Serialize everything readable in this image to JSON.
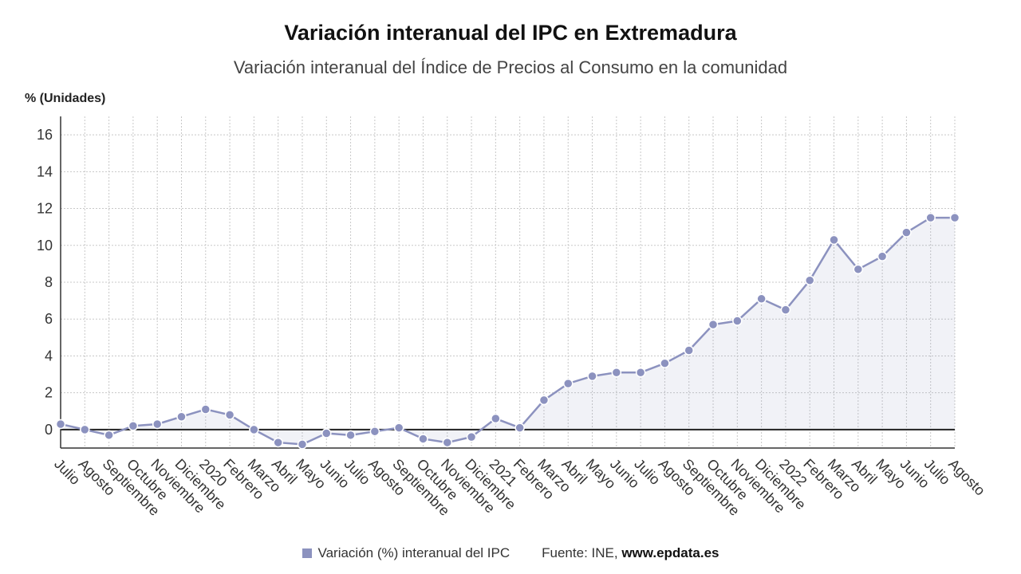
{
  "chart_data": {
    "type": "line",
    "title": "Variación interanual del IPC en Extremadura",
    "subtitle": "Variación interanual del Índice de Precios al Consumo en la comunidad",
    "ylabel": "% (Unidades)",
    "ylim": [
      -1,
      17
    ],
    "yticks": [
      0,
      2,
      4,
      6,
      8,
      10,
      12,
      14,
      16
    ],
    "grid": true,
    "categories": [
      "Julio",
      "Agosto",
      "Septiembre",
      "Octubre",
      "Noviembre",
      "Diciembre",
      "2020",
      "Febrero",
      "Marzo",
      "Abril",
      "Mayo",
      "Junio",
      "Julio",
      "Agosto",
      "Septiembre",
      "Octubre",
      "Noviembre",
      "Diciembre",
      "2021",
      "Febrero",
      "Marzo",
      "Abril",
      "Mayo",
      "Junio",
      "Julio",
      "Agosto",
      "Septiembre",
      "Octubre",
      "Noviembre",
      "Diciembre",
      "2022",
      "Febrero",
      "Marzo",
      "Abril",
      "Mayo",
      "Junio",
      "Julio",
      "Agosto"
    ],
    "series": [
      {
        "name": "Variación (%) interanual del IPC",
        "color": "#8c92bf",
        "values": [
          0.3,
          0.0,
          -0.3,
          0.2,
          0.3,
          0.7,
          1.1,
          0.8,
          0.0,
          -0.7,
          -0.8,
          -0.2,
          -0.3,
          -0.1,
          0.1,
          -0.5,
          -0.7,
          -0.4,
          0.6,
          0.1,
          1.6,
          2.5,
          2.9,
          3.1,
          3.1,
          3.6,
          4.3,
          5.7,
          5.9,
          7.1,
          6.5,
          8.1,
          10.3,
          8.7,
          9.4,
          10.7,
          11.5,
          11.5
        ]
      }
    ],
    "legend_position": "bottom"
  },
  "footer": {
    "legend_label": "Variación (%) interanual del IPC",
    "source_prefix": "Fuente: INE, ",
    "source_brand": "www.epdata.es"
  }
}
